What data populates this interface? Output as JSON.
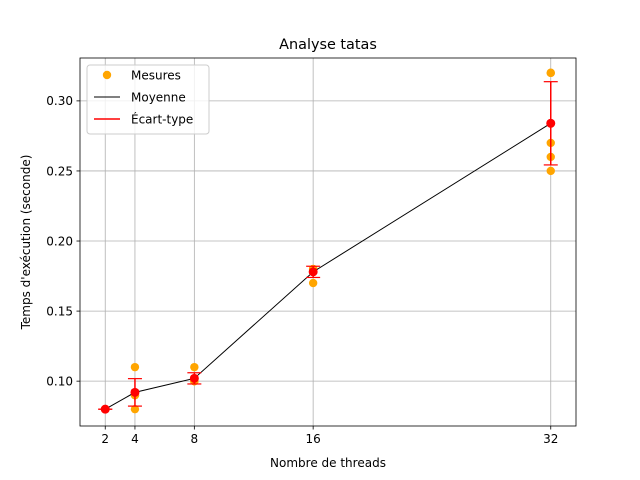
{
  "chart_data": {
    "type": "scatter",
    "title": "Analyse tatas",
    "xlabel": "Nombre de threads",
    "ylabel": "Temps d'exécution (seconde)",
    "xlim": [
      0.3,
      33.7
    ],
    "ylim": [
      0.068,
      0.3306
    ],
    "xticks": [
      2,
      4,
      8,
      16,
      32
    ],
    "yticks": [
      0.1,
      0.15,
      0.2,
      0.25,
      0.3
    ],
    "ytick_labels": [
      "0.10",
      "0.15",
      "0.20",
      "0.25",
      "0.30"
    ],
    "grid": true,
    "legend": {
      "position": "top-left",
      "entries": [
        "Mesures",
        "Moyenne",
        "Écart-type"
      ]
    },
    "colors": {
      "mesures": "#ffa500",
      "moyenne": "#000000",
      "ecart": "#ff0000"
    },
    "measurements": [
      {
        "x": 2,
        "y": 0.08
      },
      {
        "x": 2,
        "y": 0.08
      },
      {
        "x": 2,
        "y": 0.08
      },
      {
        "x": 2,
        "y": 0.08
      },
      {
        "x": 2,
        "y": 0.08
      },
      {
        "x": 4,
        "y": 0.11
      },
      {
        "x": 4,
        "y": 0.09
      },
      {
        "x": 4,
        "y": 0.09
      },
      {
        "x": 4,
        "y": 0.08
      },
      {
        "x": 4,
        "y": 0.09
      },
      {
        "x": 8,
        "y": 0.11
      },
      {
        "x": 8,
        "y": 0.1
      },
      {
        "x": 8,
        "y": 0.1
      },
      {
        "x": 8,
        "y": 0.1
      },
      {
        "x": 8,
        "y": 0.1
      },
      {
        "x": 16,
        "y": 0.18
      },
      {
        "x": 16,
        "y": 0.18
      },
      {
        "x": 16,
        "y": 0.18
      },
      {
        "x": 16,
        "y": 0.17
      },
      {
        "x": 16,
        "y": 0.18
      },
      {
        "x": 32,
        "y": 0.32
      },
      {
        "x": 32,
        "y": 0.27
      },
      {
        "x": 32,
        "y": 0.26
      },
      {
        "x": 32,
        "y": 0.25
      },
      {
        "x": 32,
        "y": 0.32
      }
    ],
    "series": [
      {
        "name": "Moyenne",
        "x": [
          2,
          4,
          8,
          16,
          32
        ],
        "y": [
          0.08,
          0.092,
          0.102,
          0.178,
          0.284
        ]
      },
      {
        "name": "Écart-type",
        "x": [
          2,
          4,
          8,
          16,
          32
        ],
        "y": [
          0.08,
          0.092,
          0.102,
          0.178,
          0.284
        ],
        "yerr": [
          0.0,
          0.0098,
          0.004,
          0.004,
          0.0297
        ]
      }
    ]
  }
}
